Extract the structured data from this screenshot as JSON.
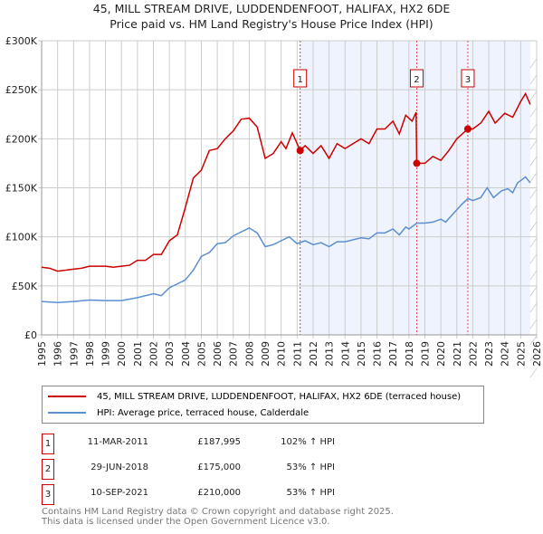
{
  "title": "45, MILL STREAM DRIVE, LUDDENDENFOOT, HALIFAX, HX2 6DE",
  "subtitle": "Price paid vs. HM Land Registry's House Price Index (HPI)",
  "chart_data": {
    "type": "line",
    "xlim": [
      1995,
      2026
    ],
    "ylim": [
      0,
      300000
    ],
    "yticks": [
      {
        "v": 0,
        "label": "£0"
      },
      {
        "v": 50000,
        "label": "£50K"
      },
      {
        "v": 100000,
        "label": "£100K"
      },
      {
        "v": 150000,
        "label": "£150K"
      },
      {
        "v": 200000,
        "label": "£200K"
      },
      {
        "v": 250000,
        "label": "£250K"
      },
      {
        "v": 300000,
        "label": "£300K"
      }
    ],
    "xticks": [
      "1995",
      "1996",
      "1997",
      "1998",
      "1999",
      "2000",
      "2001",
      "2002",
      "2003",
      "2004",
      "2005",
      "2006",
      "2007",
      "2008",
      "2009",
      "2010",
      "2011",
      "2012",
      "2013",
      "2014",
      "2015",
      "2016",
      "2017",
      "2018",
      "2019",
      "2020",
      "2021",
      "2022",
      "2023",
      "2024",
      "2025",
      "2026"
    ],
    "grid": true,
    "shaded_range": [
      2011.19,
      2025.6
    ],
    "series": [
      {
        "name": "45, MILL STREAM DRIVE, LUDDENDENFOOT, HALIFAX, HX2 6DE (terraced house)",
        "color": "#cc0000",
        "x": [
          1995,
          1995.5,
          1996,
          1996.5,
          1997,
          1997.5,
          1998,
          1999,
          1999.5,
          2000,
          2000.5,
          2001,
          2001.5,
          2002,
          2002.5,
          2003,
          2003.5,
          2004,
          2004.5,
          2005,
          2005.5,
          2006,
          2006.5,
          2007,
          2007.5,
          2008,
          2008.5,
          2009,
          2009.5,
          2010,
          2010.3,
          2010.7,
          2011.19,
          2011.5,
          2012,
          2012.5,
          2013,
          2013.5,
          2014,
          2014.5,
          2015,
          2015.5,
          2016,
          2016.5,
          2017,
          2017.4,
          2017.8,
          2018.2,
          2018.45,
          2018.49,
          2019,
          2019.5,
          2020,
          2020.5,
          2021,
          2021.69,
          2022,
          2022.5,
          2023,
          2023.4,
          2024,
          2024.5,
          2025,
          2025.3,
          2025.6
        ],
        "y": [
          69000,
          68000,
          65000,
          66000,
          67000,
          68000,
          70000,
          70000,
          69000,
          70000,
          71000,
          76000,
          76000,
          82000,
          82000,
          96000,
          102000,
          130000,
          160000,
          168000,
          188000,
          190000,
          200000,
          208000,
          220000,
          221000,
          212000,
          180000,
          185000,
          197000,
          190000,
          206000,
          187995,
          193000,
          185000,
          193000,
          180000,
          195000,
          190000,
          195000,
          200000,
          195000,
          210000,
          210000,
          218000,
          205000,
          224000,
          218000,
          227000,
          175000,
          175000,
          182000,
          178000,
          188000,
          200000,
          210000,
          210000,
          216000,
          228000,
          216000,
          226000,
          222000,
          238000,
          246000,
          235000
        ]
      },
      {
        "name": "HPI: Average price, terraced house, Calderdale",
        "color": "#5b8fd0",
        "x": [
          1995,
          1996,
          1997,
          1998,
          1999,
          2000,
          2001,
          2002,
          2002.5,
          2003,
          2004,
          2004.5,
          2005,
          2005.5,
          2006,
          2006.5,
          2007,
          2007.5,
          2008,
          2008.5,
          2009,
          2009.5,
          2010,
          2010.5,
          2011,
          2011.5,
          2012,
          2012.5,
          2013,
          2013.5,
          2014,
          2015,
          2015.5,
          2016,
          2016.5,
          2017,
          2017.4,
          2017.8,
          2018,
          2018.5,
          2019,
          2019.5,
          2020,
          2020.3,
          2020.8,
          2021.3,
          2021.7,
          2022,
          2022.5,
          2022.9,
          2023.3,
          2023.8,
          2024.2,
          2024.5,
          2024.8,
          2025.3,
          2025.6
        ],
        "y": [
          34000,
          33000,
          34000,
          35500,
          35000,
          35000,
          38000,
          42000,
          40000,
          48000,
          56000,
          66000,
          80000,
          84000,
          93000,
          94000,
          101000,
          105000,
          109000,
          104000,
          90000,
          92000,
          96000,
          100000,
          93000,
          96000,
          92000,
          94000,
          90000,
          95000,
          95000,
          99000,
          98000,
          104000,
          104000,
          108000,
          102000,
          110000,
          108000,
          114000,
          114000,
          115000,
          118000,
          115000,
          124000,
          133000,
          139000,
          137000,
          140000,
          150000,
          140000,
          147000,
          149000,
          145000,
          155000,
          161000,
          155000
        ]
      }
    ],
    "sales": [
      {
        "num": "1",
        "x": 2011.19,
        "y": 187995,
        "date": "11-MAR-2011",
        "price": "£187,995",
        "hpi": "102% ↑ HPI"
      },
      {
        "num": "2",
        "x": 2018.49,
        "y": 175000,
        "date": "29-JUN-2018",
        "price": "£175,000",
        "hpi": "53% ↑ HPI"
      },
      {
        "num": "3",
        "x": 2021.69,
        "y": 210000,
        "date": "10-SEP-2021",
        "price": "£210,000",
        "hpi": "53% ↑ HPI"
      }
    ],
    "legend_position": "below"
  },
  "footer": {
    "line1": "Contains HM Land Registry data © Crown copyright and database right 2025.",
    "line2": "This data is licensed under the Open Government Licence v3.0."
  }
}
